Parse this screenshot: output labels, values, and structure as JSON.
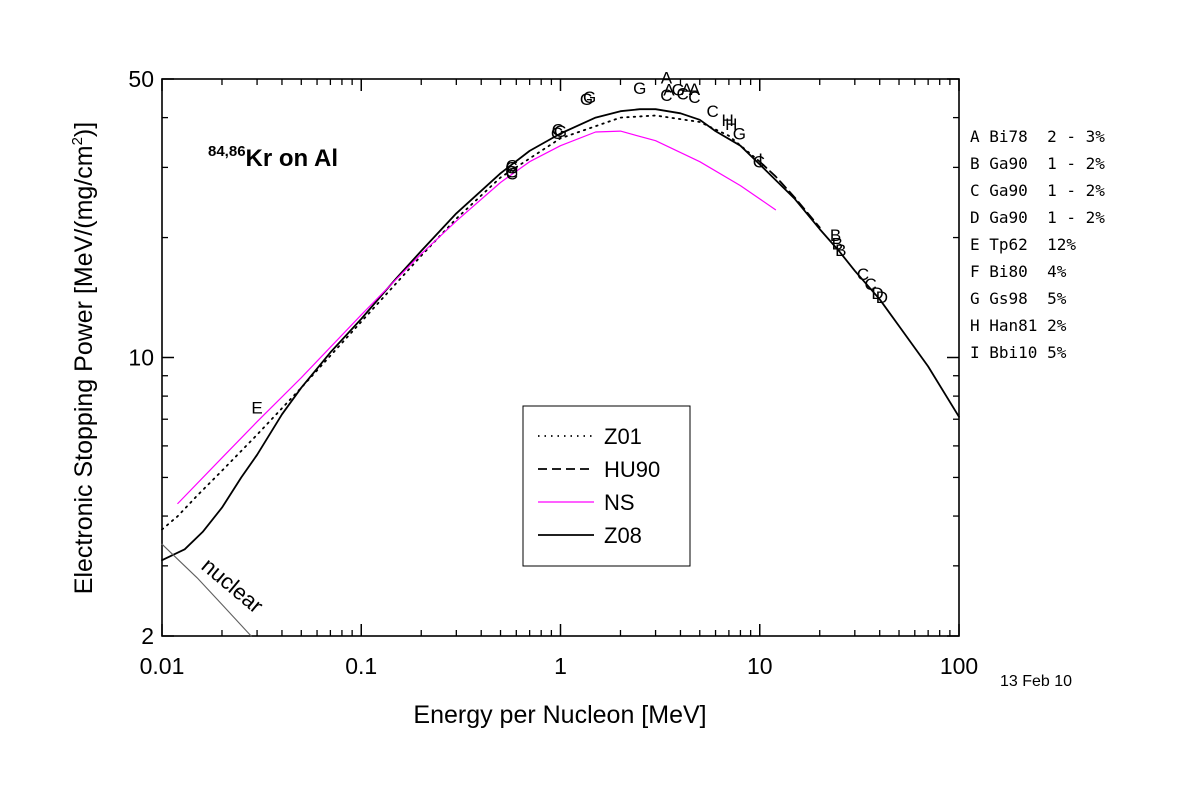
{
  "chart_data": {
    "type": "line",
    "title_sup": "84,86",
    "title_main": "Kr on Al",
    "xlabel": "Energy per Nucleon [MeV]",
    "ylabel_pre": "Electronic Stopping Power [MeV/(mg/cm",
    "ylabel_sup": "2",
    "ylabel_post": ")]",
    "xscale": "log",
    "yscale": "log",
    "xlim": [
      0.01,
      100
    ],
    "ylim": [
      2,
      50
    ],
    "x_ticks": [
      {
        "v": 0.01,
        "label": "0.01"
      },
      {
        "v": 0.1,
        "label": "0.1"
      },
      {
        "v": 1,
        "label": "1"
      },
      {
        "v": 10,
        "label": "10"
      },
      {
        "v": 100,
        "label": "100"
      }
    ],
    "y_ticks": [
      {
        "v": 2,
        "label": "2"
      },
      {
        "v": 10,
        "label": "10"
      },
      {
        "v": 50,
        "label": "50"
      }
    ],
    "date_note": "13 Feb 10",
    "nuclear_label": "nuclear",
    "legend": {
      "placement": "center",
      "entries": [
        {
          "name": "Z01",
          "style": "dotted",
          "color": "#000000"
        },
        {
          "name": "HU90",
          "style": "dashed",
          "color": "#000000"
        },
        {
          "name": "NS",
          "style": "solid",
          "color": "#ff00ff"
        },
        {
          "name": "Z08",
          "style": "solid",
          "color": "#000000"
        }
      ]
    },
    "references": [
      "A Bi78  2 - 3%",
      "B Ga90  1 - 2%",
      "C Ga90  1 - 2%",
      "D Ga90  1 - 2%",
      "E Tp62  12%",
      "F Bi80  4%",
      "G Gs98  5%",
      "H Han81 2%",
      "I Bbi10 5%"
    ],
    "series": [
      {
        "name": "Z08",
        "style": "solid",
        "color": "#000000",
        "x": [
          0.01,
          0.013,
          0.016,
          0.02,
          0.025,
          0.03,
          0.04,
          0.05,
          0.07,
          0.1,
          0.15,
          0.2,
          0.3,
          0.5,
          0.7,
          1.0,
          1.5,
          2.0,
          2.5,
          3.0,
          4.0,
          5.0,
          6.0,
          8.0,
          10,
          15,
          20,
          25,
          30,
          40,
          50,
          70,
          100
        ],
        "y": [
          3.1,
          3.3,
          3.65,
          4.2,
          5.0,
          5.7,
          7.2,
          8.4,
          10.3,
          12.5,
          15.8,
          18.5,
          23.0,
          29.0,
          33.0,
          36.5,
          40.0,
          41.5,
          42.0,
          42.0,
          41.0,
          39.5,
          37.0,
          34.0,
          30.5,
          25.0,
          21.0,
          18.5,
          16.5,
          14.0,
          12.0,
          9.5,
          7.1
        ]
      },
      {
        "name": "Z01",
        "style": "dotted",
        "color": "#000000",
        "x": [
          0.01,
          0.012,
          0.015,
          0.02,
          0.03,
          0.05,
          0.1,
          0.2,
          0.3,
          0.5,
          1.0,
          2.0,
          3.0,
          5.0,
          7.0,
          10
        ],
        "y": [
          3.7,
          4.0,
          4.5,
          5.2,
          6.4,
          8.4,
          12.3,
          18.0,
          22.3,
          28.3,
          35.5,
          40.0,
          40.5,
          39.0,
          36.0,
          31.0
        ]
      },
      {
        "name": "HU90",
        "style": "dashed",
        "color": "#000000",
        "x": [
          10,
          12,
          15,
          20
        ],
        "y": [
          31.0,
          28.5,
          25.2,
          21.2
        ]
      },
      {
        "name": "NS",
        "style": "solid",
        "color": "#ff00ff",
        "x": [
          0.012,
          0.02,
          0.03,
          0.05,
          0.1,
          0.2,
          0.3,
          0.5,
          0.7,
          1.0,
          1.5,
          2.0,
          3.0,
          5.0,
          8.0,
          12
        ],
        "y": [
          4.3,
          5.6,
          6.9,
          8.9,
          12.8,
          18.2,
          22.0,
          27.5,
          31.0,
          34.0,
          36.8,
          37.0,
          35.0,
          31.0,
          27.0,
          23.5
        ]
      },
      {
        "name": "nuclear",
        "style": "solid",
        "color": "#606060",
        "x": [
          0.01,
          0.015,
          0.02,
          0.028
        ],
        "y": [
          3.4,
          2.8,
          2.4,
          2.0
        ]
      }
    ],
    "points": [
      {
        "label": "G",
        "x": 0.57,
        "y": 29.3
      },
      {
        "label": "G",
        "x": 0.57,
        "y": 30.0
      },
      {
        "label": "C",
        "x": 0.57,
        "y": 29.0
      },
      {
        "label": "C",
        "x": 0.57,
        "y": 30.3
      },
      {
        "label": "C",
        "x": 0.96,
        "y": 36.6
      },
      {
        "label": "C",
        "x": 0.97,
        "y": 37.3
      },
      {
        "label": "G",
        "x": 1.0,
        "y": 37.0
      },
      {
        "label": "G",
        "x": 1.35,
        "y": 44.5
      },
      {
        "label": "G",
        "x": 1.4,
        "y": 45.0
      },
      {
        "label": "G",
        "x": 2.5,
        "y": 47.5
      },
      {
        "label": "A",
        "x": 3.4,
        "y": 50.5
      },
      {
        "label": "A",
        "x": 3.5,
        "y": 47.0
      },
      {
        "label": "C",
        "x": 3.4,
        "y": 45.6
      },
      {
        "label": "C",
        "x": 4.1,
        "y": 46.0
      },
      {
        "label": "G",
        "x": 3.9,
        "y": 47.0
      },
      {
        "label": "A",
        "x": 4.3,
        "y": 47.2
      },
      {
        "label": "A",
        "x": 4.7,
        "y": 47.2
      },
      {
        "label": "C",
        "x": 4.7,
        "y": 45.0
      },
      {
        "label": "C",
        "x": 5.8,
        "y": 41.5
      },
      {
        "label": "H",
        "x": 6.9,
        "y": 39.5
      },
      {
        "label": "H",
        "x": 7.2,
        "y": 38.5
      },
      {
        "label": "G",
        "x": 7.9,
        "y": 36.5
      },
      {
        "label": "I",
        "x": 10.1,
        "y": 31.5
      },
      {
        "label": "C",
        "x": 9.9,
        "y": 31.0
      },
      {
        "label": "B",
        "x": 24.0,
        "y": 20.3
      },
      {
        "label": "B",
        "x": 24.5,
        "y": 19.3
      },
      {
        "label": "B",
        "x": 25.5,
        "y": 18.6
      },
      {
        "label": "C",
        "x": 33.0,
        "y": 16.2
      },
      {
        "label": "C",
        "x": 36.0,
        "y": 15.3
      },
      {
        "label": "D",
        "x": 39.0,
        "y": 14.5
      },
      {
        "label": "D",
        "x": 41.0,
        "y": 14.2
      },
      {
        "label": "E",
        "x": 0.03,
        "y": 7.5
      }
    ]
  }
}
